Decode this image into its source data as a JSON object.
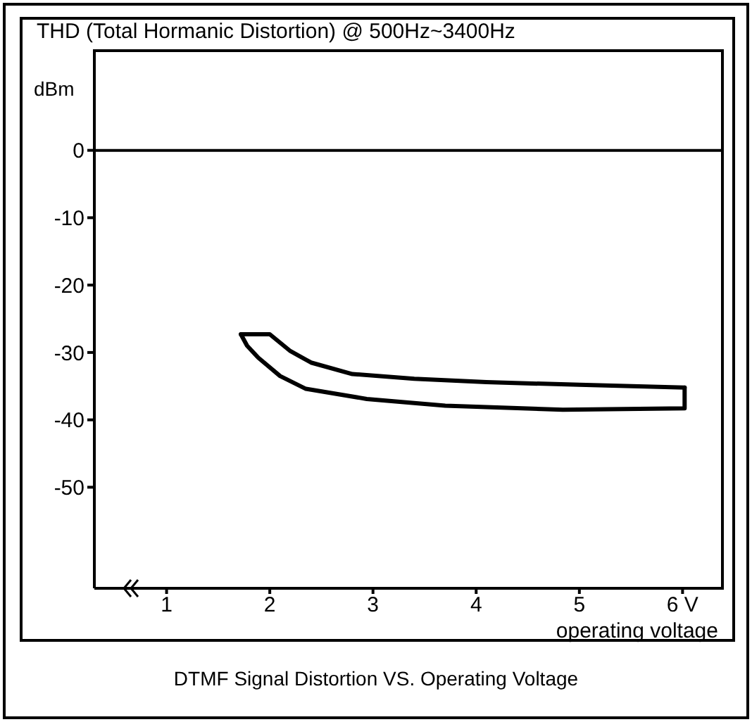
{
  "chart_data": {
    "type": "line",
    "title": "THD (Total Hormanic Distortion) @ 500Hz~3400Hz",
    "ylabel": "dBm",
    "xlabel": "operating voltage",
    "annotations": [
      "DTMF Signal Distortion VS. Operating Voltage"
    ],
    "xlim": [
      0.3,
      6.4
    ],
    "xticks": [
      1,
      2,
      3,
      4,
      5,
      {
        "value": 6,
        "label": "6 V"
      }
    ],
    "ylim": [
      -65,
      15
    ],
    "yticks": [
      0,
      -10,
      -20,
      -30,
      -40,
      -50
    ],
    "series": [
      {
        "color": "#000000",
        "x": [
          1.72,
          2.0,
          2.2,
          2.4,
          2.8,
          3.4,
          4.1,
          5.0,
          6.02
        ],
        "values": [
          -27.3,
          -27.3,
          -29.8,
          -31.5,
          -33.2,
          -33.9,
          -34.4,
          -34.8,
          -35.2
        ]
      },
      {
        "color": "#000000",
        "x": [
          1.72,
          1.78,
          1.89,
          2.1,
          2.35,
          2.94,
          3.7,
          4.84,
          6.02,
          6.02
        ],
        "values": [
          -27.3,
          -29.0,
          -30.8,
          -33.5,
          -35.4,
          -36.9,
          -37.9,
          -38.5,
          -38.3,
          -35.2
        ]
      }
    ],
    "ref_lines": [
      {
        "axis": "y",
        "value": 0,
        "color": "#000000"
      }
    ],
    "grid": false,
    "legend": false,
    "marker": "none",
    "line_style": "solid"
  }
}
